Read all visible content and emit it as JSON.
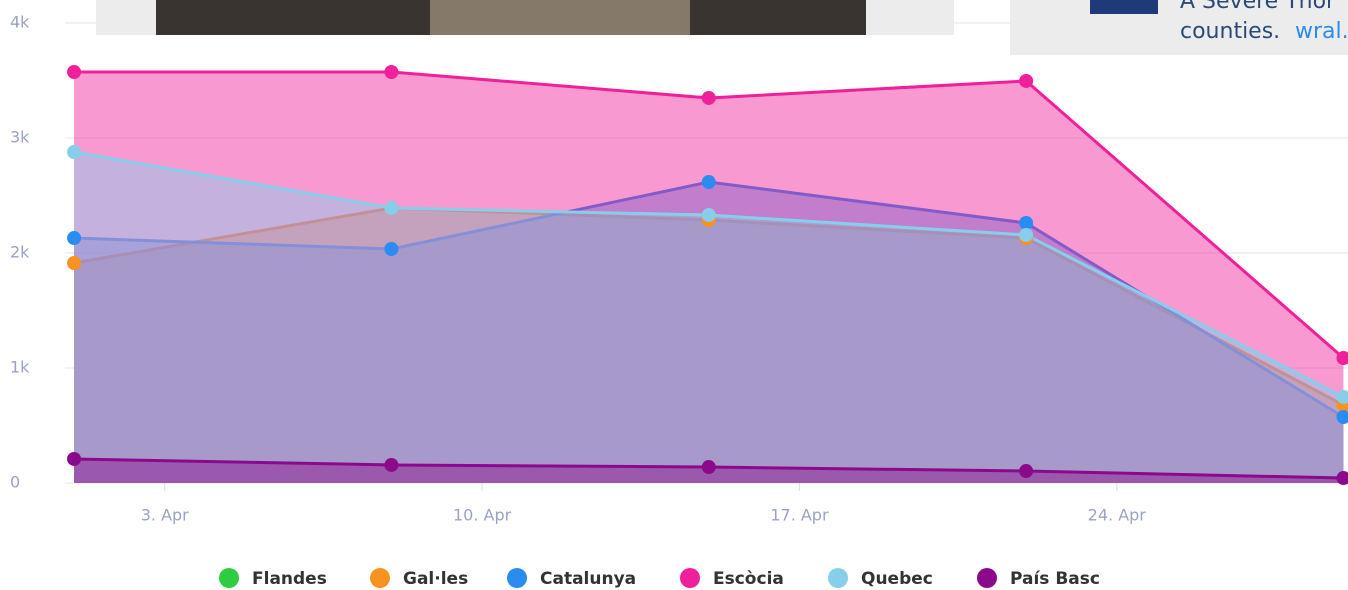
{
  "chart_data": {
    "type": "area",
    "x": [
      1,
      8,
      15,
      22,
      29
    ],
    "xlim": [
      0.8,
      29.1
    ],
    "xticks": [
      {
        "value": 3,
        "label": "3. Apr"
      },
      {
        "value": 10,
        "label": "10. Apr"
      },
      {
        "value": 17,
        "label": "17. Apr"
      },
      {
        "value": 24,
        "label": "24. Apr"
      }
    ],
    "ylim": [
      0,
      4200
    ],
    "yticks": [
      {
        "value": 0,
        "label": "0"
      },
      {
        "value": 1000,
        "label": "1k"
      },
      {
        "value": 2000,
        "label": "2k"
      },
      {
        "value": 3000,
        "label": "3k"
      },
      {
        "value": 4000,
        "label": "4k"
      }
    ],
    "grid": true,
    "legend": "bottom",
    "series": [
      {
        "name": "Flandes",
        "color": "#2ecc40",
        "values": [
          null,
          null,
          null,
          null,
          null
        ]
      },
      {
        "name": "Gal·les",
        "color": "#f7931e",
        "values": [
          1913,
          2391,
          2287,
          2130,
          678
        ]
      },
      {
        "name": "Catalunya",
        "color": "#2a8cf0",
        "values": [
          2130,
          2035,
          2617,
          2261,
          574
        ]
      },
      {
        "name": "Escòcia",
        "color": "#f01f9a",
        "values": [
          3574,
          3574,
          3348,
          3496,
          1087
        ]
      },
      {
        "name": "Quebec",
        "color": "#87ceeb",
        "values": [
          2878,
          2391,
          2330,
          2157,
          748
        ]
      },
      {
        "name": "País Basc",
        "color": "#8b0a8c",
        "values": [
          209,
          157,
          139,
          104,
          43
        ]
      }
    ]
  },
  "ad": {
    "lines": [
      "A Severe Thor",
      "counties."
    ],
    "link": "wral."
  }
}
